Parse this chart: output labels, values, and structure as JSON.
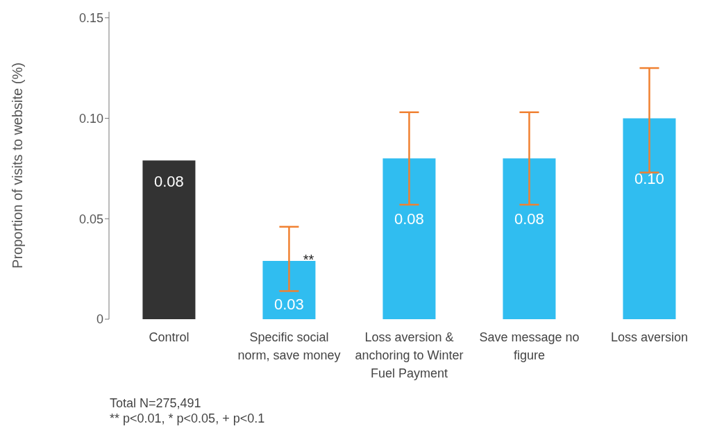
{
  "chart_data": {
    "type": "bar",
    "ylabel": "Proportion of visits to website (%)",
    "categories": [
      "Control",
      "Specific social norm, save money",
      "Loss aversion & anchoring to Winter Fuel Payment",
      "Save message no figure",
      "Loss aversion"
    ],
    "values": [
      0.079,
      0.029,
      0.08,
      0.08,
      0.1
    ],
    "colors": [
      "#333333",
      "#30bdf0",
      "#30bdf0",
      "#30bdf0",
      "#30bdf0"
    ],
    "value_labels": [
      "0.08",
      "0.03",
      "0.08",
      "0.08",
      "0.10"
    ],
    "errors": [
      null,
      [
        0.014,
        0.046
      ],
      [
        0.057,
        0.103
      ],
      [
        0.057,
        0.103
      ],
      [
        0.073,
        0.125
      ]
    ],
    "ylim": [
      0,
      0.153
    ],
    "yticks": [
      0,
      0.05,
      {
        "value": 0.1,
        "label": "0.10"
      },
      0.15
    ],
    "grid": false,
    "annotations": [
      {
        "text": "**",
        "x": "Specific social norm, save money",
        "y": 0.029
      },
      "Total N=275,491",
      "** p<0.01, * p<0.05, + p<0.1"
    ]
  }
}
